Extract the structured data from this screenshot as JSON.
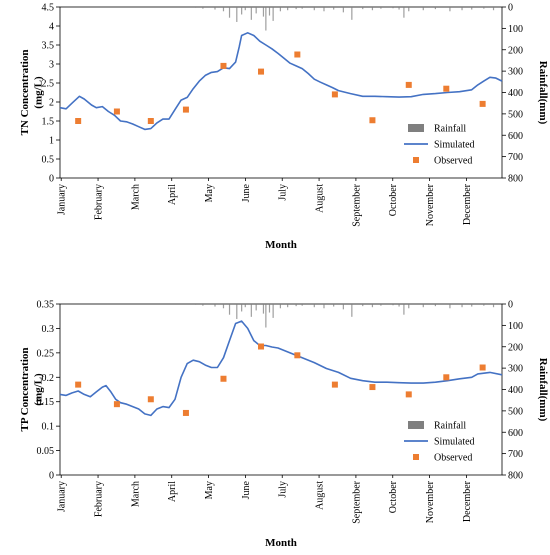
{
  "chart_data": [
    {
      "type": "line",
      "ylabel": "TN Concentration (mg/L)",
      "ylabel_lines": [
        "TN Concentration",
        "(mg/L)"
      ],
      "y2label": "Rainfall(mm)",
      "xlabel": "Month",
      "ylim": [
        0,
        4.5
      ],
      "y_ticks": [
        "0",
        "0.5",
        "1",
        "1.5",
        "2",
        "2.5",
        "3",
        "3.5",
        "4",
        "4.5"
      ],
      "y2lim": [
        0,
        800
      ],
      "y2_ticks": [
        "0",
        "100",
        "200",
        "300",
        "400",
        "500",
        "600",
        "700",
        "800"
      ],
      "months": [
        "January",
        "February",
        "March",
        "April",
        "May",
        "June",
        "July",
        "August",
        "September",
        "October",
        "November",
        "December"
      ],
      "legend": [
        "Rainfall",
        "Simulated",
        "Observed"
      ],
      "simulated": [
        [
          0,
          1.85
        ],
        [
          5,
          1.82
        ],
        [
          10,
          1.97
        ],
        [
          16,
          2.15
        ],
        [
          20,
          2.08
        ],
        [
          26,
          1.92
        ],
        [
          30,
          1.85
        ],
        [
          35,
          1.88
        ],
        [
          40,
          1.75
        ],
        [
          45,
          1.65
        ],
        [
          50,
          1.5
        ],
        [
          55,
          1.48
        ],
        [
          60,
          1.42
        ],
        [
          65,
          1.35
        ],
        [
          70,
          1.28
        ],
        [
          75,
          1.3
        ],
        [
          80,
          1.45
        ],
        [
          85,
          1.55
        ],
        [
          90,
          1.55
        ],
        [
          95,
          1.8
        ],
        [
          100,
          2.05
        ],
        [
          105,
          2.12
        ],
        [
          110,
          2.35
        ],
        [
          115,
          2.55
        ],
        [
          120,
          2.7
        ],
        [
          125,
          2.78
        ],
        [
          130,
          2.8
        ],
        [
          135,
          2.9
        ],
        [
          140,
          2.88
        ],
        [
          145,
          3.05
        ],
        [
          148,
          3.45
        ],
        [
          150,
          3.75
        ],
        [
          155,
          3.82
        ],
        [
          160,
          3.75
        ],
        [
          165,
          3.6
        ],
        [
          170,
          3.5
        ],
        [
          175,
          3.4
        ],
        [
          180,
          3.28
        ],
        [
          185,
          3.15
        ],
        [
          190,
          3.02
        ],
        [
          195,
          2.95
        ],
        [
          200,
          2.88
        ],
        [
          205,
          2.75
        ],
        [
          210,
          2.6
        ],
        [
          215,
          2.52
        ],
        [
          220,
          2.45
        ],
        [
          225,
          2.38
        ],
        [
          230,
          2.3
        ],
        [
          240,
          2.22
        ],
        [
          250,
          2.15
        ],
        [
          260,
          2.15
        ],
        [
          270,
          2.14
        ],
        [
          280,
          2.13
        ],
        [
          290,
          2.14
        ],
        [
          300,
          2.2
        ],
        [
          310,
          2.22
        ],
        [
          320,
          2.25
        ],
        [
          330,
          2.27
        ],
        [
          340,
          2.32
        ],
        [
          345,
          2.45
        ],
        [
          350,
          2.55
        ],
        [
          355,
          2.65
        ],
        [
          360,
          2.63
        ],
        [
          365,
          2.55
        ]
      ],
      "observed": [
        [
          15,
          1.5
        ],
        [
          47,
          1.75
        ],
        [
          75,
          1.5
        ],
        [
          104,
          1.8
        ],
        [
          135,
          2.95
        ],
        [
          166,
          2.8
        ],
        [
          196,
          3.25
        ],
        [
          227,
          2.2
        ],
        [
          258,
          1.52
        ],
        [
          288,
          2.45
        ],
        [
          319,
          2.35
        ],
        [
          349,
          1.95
        ]
      ],
      "rainfall": [
        [
          112,
          4
        ],
        [
          118,
          8
        ],
        [
          128,
          12
        ],
        [
          135,
          20
        ],
        [
          140,
          50
        ],
        [
          146,
          70
        ],
        [
          150,
          35
        ],
        [
          153,
          15
        ],
        [
          158,
          60
        ],
        [
          162,
          30
        ],
        [
          168,
          45
        ],
        [
          170,
          110
        ],
        [
          173,
          40
        ],
        [
          176,
          65
        ],
        [
          182,
          20
        ],
        [
          188,
          15
        ],
        [
          195,
          10
        ],
        [
          200,
          8
        ],
        [
          210,
          15
        ],
        [
          218,
          20
        ],
        [
          226,
          12
        ],
        [
          234,
          25
        ],
        [
          241,
          60
        ],
        [
          250,
          10
        ],
        [
          258,
          15
        ],
        [
          265,
          8
        ],
        [
          275,
          6
        ],
        [
          280,
          12
        ],
        [
          284,
          50
        ],
        [
          288,
          20
        ],
        [
          300,
          15
        ],
        [
          310,
          10
        ],
        [
          322,
          20
        ],
        [
          332,
          15
        ],
        [
          340,
          12
        ],
        [
          350,
          8
        ],
        [
          358,
          15
        ]
      ]
    },
    {
      "type": "line",
      "ylabel": "TP Concentration (mg/L)",
      "ylabel_lines": [
        "TP Concentration",
        "(mg/L)"
      ],
      "y2label": "Rainfall(mm)",
      "xlabel": "Month",
      "ylim": [
        0,
        0.35
      ],
      "y_ticks": [
        "0",
        "0.05",
        "0.1",
        "0.15",
        "0.2",
        "0.25",
        "0.3",
        "0.35"
      ],
      "y2lim": [
        0,
        800
      ],
      "y2_ticks": [
        "0",
        "100",
        "200",
        "300",
        "400",
        "500",
        "600",
        "700",
        "800"
      ],
      "months": [
        "January",
        "February",
        "March",
        "April",
        "May",
        "June",
        "July",
        "August",
        "September",
        "October",
        "November",
        "December"
      ],
      "legend": [
        "Rainfall",
        "Simulated",
        "Observed"
      ],
      "simulated": [
        [
          0,
          0.165
        ],
        [
          5,
          0.163
        ],
        [
          10,
          0.168
        ],
        [
          15,
          0.172
        ],
        [
          20,
          0.165
        ],
        [
          25,
          0.16
        ],
        [
          30,
          0.17
        ],
        [
          35,
          0.18
        ],
        [
          38,
          0.183
        ],
        [
          42,
          0.17
        ],
        [
          46,
          0.155
        ],
        [
          50,
          0.148
        ],
        [
          55,
          0.145
        ],
        [
          60,
          0.14
        ],
        [
          65,
          0.135
        ],
        [
          70,
          0.125
        ],
        [
          75,
          0.122
        ],
        [
          80,
          0.135
        ],
        [
          85,
          0.14
        ],
        [
          90,
          0.138
        ],
        [
          95,
          0.155
        ],
        [
          100,
          0.2
        ],
        [
          105,
          0.228
        ],
        [
          110,
          0.235
        ],
        [
          115,
          0.232
        ],
        [
          120,
          0.225
        ],
        [
          125,
          0.22
        ],
        [
          130,
          0.22
        ],
        [
          135,
          0.24
        ],
        [
          140,
          0.275
        ],
        [
          145,
          0.31
        ],
        [
          150,
          0.315
        ],
        [
          155,
          0.3
        ],
        [
          160,
          0.275
        ],
        [
          165,
          0.265
        ],
        [
          170,
          0.265
        ],
        [
          175,
          0.262
        ],
        [
          180,
          0.26
        ],
        [
          190,
          0.25
        ],
        [
          200,
          0.24
        ],
        [
          210,
          0.23
        ],
        [
          220,
          0.218
        ],
        [
          230,
          0.21
        ],
        [
          240,
          0.198
        ],
        [
          250,
          0.193
        ],
        [
          260,
          0.19
        ],
        [
          270,
          0.19
        ],
        [
          280,
          0.189
        ],
        [
          290,
          0.188
        ],
        [
          300,
          0.188
        ],
        [
          310,
          0.19
        ],
        [
          320,
          0.193
        ],
        [
          330,
          0.197
        ],
        [
          340,
          0.2
        ],
        [
          345,
          0.207
        ],
        [
          355,
          0.21
        ],
        [
          365,
          0.205
        ]
      ],
      "observed": [
        [
          15,
          0.185
        ],
        [
          47,
          0.145
        ],
        [
          75,
          0.155
        ],
        [
          104,
          0.127
        ],
        [
          135,
          0.197
        ],
        [
          166,
          0.263
        ],
        [
          196,
          0.245
        ],
        [
          227,
          0.185
        ],
        [
          258,
          0.18
        ],
        [
          288,
          0.165
        ],
        [
          319,
          0.2
        ],
        [
          349,
          0.22
        ]
      ],
      "rainfall": [
        [
          112,
          4
        ],
        [
          118,
          8
        ],
        [
          128,
          12
        ],
        [
          135,
          20
        ],
        [
          140,
          50
        ],
        [
          146,
          70
        ],
        [
          150,
          35
        ],
        [
          153,
          15
        ],
        [
          158,
          60
        ],
        [
          162,
          30
        ],
        [
          168,
          45
        ],
        [
          170,
          110
        ],
        [
          173,
          40
        ],
        [
          176,
          65
        ],
        [
          182,
          20
        ],
        [
          188,
          15
        ],
        [
          195,
          10
        ],
        [
          200,
          8
        ],
        [
          210,
          15
        ],
        [
          218,
          20
        ],
        [
          226,
          12
        ],
        [
          234,
          25
        ],
        [
          241,
          60
        ],
        [
          250,
          10
        ],
        [
          258,
          15
        ],
        [
          265,
          8
        ],
        [
          275,
          6
        ],
        [
          280,
          12
        ],
        [
          284,
          50
        ],
        [
          288,
          20
        ],
        [
          300,
          15
        ],
        [
          310,
          10
        ],
        [
          322,
          20
        ],
        [
          332,
          15
        ],
        [
          340,
          12
        ],
        [
          350,
          8
        ],
        [
          358,
          15
        ]
      ]
    }
  ],
  "colors": {
    "simulated": "#4472c4",
    "observed": "#ed7d31",
    "rainfall": "#7f7f7f"
  }
}
